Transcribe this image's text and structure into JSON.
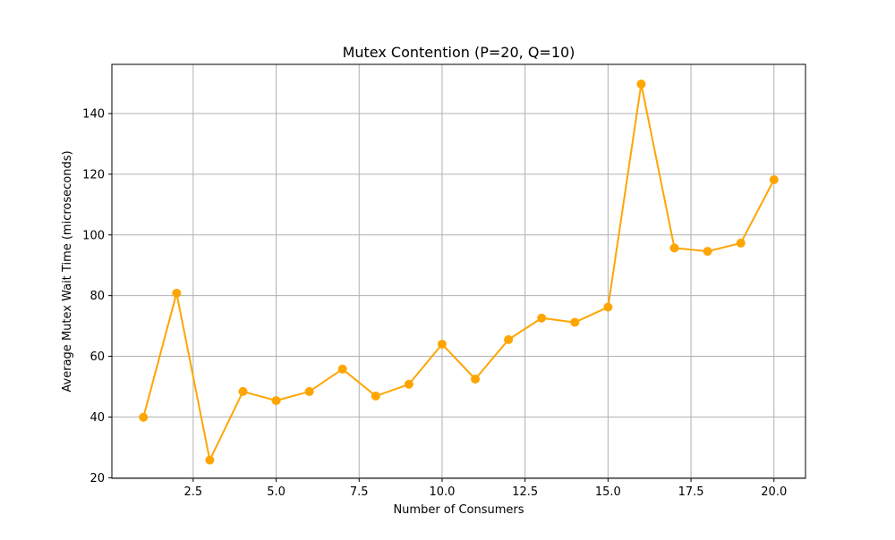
{
  "chart_data": {
    "type": "line",
    "title": "Mutex Contention (P=20, Q=10)",
    "xlabel": "Number of Consumers",
    "ylabel": "Average Mutex Wait Time (microseconds)",
    "xlim": [
      0.05,
      20.95
    ],
    "ylim": [
      19.8,
      156.2
    ],
    "x_ticks": [
      2.5,
      5.0,
      7.5,
      10.0,
      12.5,
      15.0,
      17.5,
      20.0
    ],
    "x_tick_labels": [
      "2.5",
      "5.0",
      "7.5",
      "10.0",
      "12.5",
      "15.0",
      "17.5",
      "20.0"
    ],
    "y_ticks": [
      20,
      40,
      60,
      80,
      100,
      120,
      140
    ],
    "y_tick_labels": [
      "20",
      "40",
      "60",
      "80",
      "100",
      "120",
      "140"
    ],
    "grid": true,
    "colors": {
      "line": "#ffa500",
      "grid": "#b0b0b0",
      "axes": "#000000"
    },
    "series": [
      {
        "marker": "circle",
        "x": [
          1,
          2,
          3,
          4,
          5,
          6,
          7,
          8,
          9,
          10,
          11,
          12,
          13,
          14,
          15,
          16,
          17,
          18,
          19,
          20
        ],
        "y": [
          39.9,
          80.8,
          25.8,
          48.4,
          45.4,
          48.4,
          55.8,
          46.9,
          50.8,
          64.0,
          52.5,
          65.5,
          72.6,
          71.2,
          76.2,
          149.7,
          95.7,
          94.6,
          97.3,
          118.2
        ]
      }
    ]
  }
}
